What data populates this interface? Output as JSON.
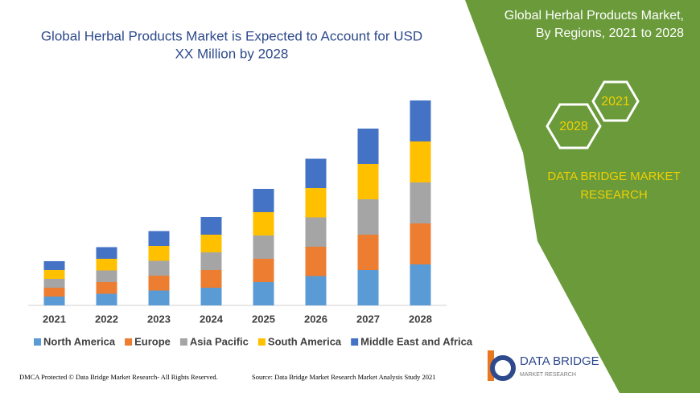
{
  "chart_data": {
    "type": "stacked_bar",
    "title": [
      "Global Herbal Products Market is Expected to Account for USD",
      "XX Million by 2028"
    ],
    "categories": [
      "2021",
      "2022",
      "2023",
      "2024",
      "2025",
      "2026",
      "2027",
      "2028"
    ],
    "series": [
      {
        "name": "North America",
        "color": "#5b9bd5",
        "values": [
          11,
          14.5,
          18.5,
          22,
          29,
          36.5,
          44,
          51
        ]
      },
      {
        "name": "Europe",
        "color": "#ed7d31",
        "values": [
          11,
          14.5,
          18.5,
          22,
          29,
          36.5,
          44,
          51
        ]
      },
      {
        "name": "Asia Pacific",
        "color": "#a5a5a5",
        "values": [
          11,
          14.5,
          18.5,
          22,
          29,
          36.5,
          44,
          51
        ]
      },
      {
        "name": "South America",
        "color": "#ffc000",
        "values": [
          11,
          14.5,
          18.5,
          22,
          29,
          36.5,
          44,
          51
        ]
      },
      {
        "name": "Middle East and Africa",
        "color": "#4472c4",
        "values": [
          11,
          14.5,
          18.5,
          22,
          29,
          36.5,
          44,
          51
        ]
      }
    ],
    "ylim": [
      0,
      260
    ],
    "legend": "bottom"
  },
  "panel": {
    "heading": [
      "Global Herbal Products Market,",
      "By Regions, 2021 to 2028"
    ],
    "hexagons": [
      "2021",
      "2028"
    ],
    "brand": [
      "DATA BRIDGE MARKET",
      "RESEARCH"
    ]
  },
  "logo": {
    "name": "DATA BRIDGE",
    "tagline": "MARKET RESEARCH"
  },
  "footer": {
    "left": "DMCA Protected © Data Bridge Market Research- All Rights Reserved.",
    "right": "Source: Data Bridge Market Research Market Analysis Study 2021"
  }
}
